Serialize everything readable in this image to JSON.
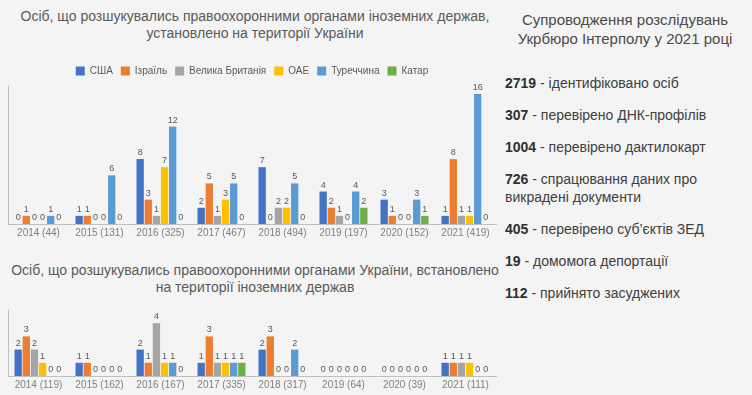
{
  "chart_data": [
    {
      "type": "bar",
      "title": "Осіб, що розшукувались правоохоронними органами іноземних держав, установлено на території України",
      "categories": [
        "2014 (44)",
        "2015 (131)",
        "2016 (325)",
        "2017 (467)",
        "2018 (494)",
        "2019 (197)",
        "2020 (152)",
        "2021 (419)"
      ],
      "series": [
        {
          "name": "США",
          "color": "#4472c4",
          "values": [
            0,
            1,
            8,
            2,
            7,
            4,
            3,
            1
          ]
        },
        {
          "name": "Ізраїль",
          "color": "#ed7d31",
          "values": [
            1,
            1,
            3,
            5,
            0,
            2,
            1,
            8
          ]
        },
        {
          "name": "Велика Британія",
          "color": "#a5a5a5",
          "values": [
            0,
            0,
            1,
            1,
            2,
            1,
            0,
            1
          ]
        },
        {
          "name": "ОАЕ",
          "color": "#ffc000",
          "values": [
            0,
            0,
            7,
            3,
            2,
            0,
            0,
            1
          ]
        },
        {
          "name": "Туреччина",
          "color": "#5b9bd5",
          "values": [
            1,
            6,
            12,
            5,
            5,
            4,
            3,
            16
          ]
        },
        {
          "name": "Катар",
          "color": "#70ad47",
          "values": [
            0,
            0,
            0,
            0,
            0,
            2,
            1,
            0
          ]
        }
      ],
      "ylim": [
        0,
        17
      ],
      "grid": false,
      "legend": "top",
      "data_labels": true,
      "tick_labels": "x"
    },
    {
      "type": "bar",
      "title": "Осіб, що розшукувались правоохоронними органами України, встановлено на території іноземних держав",
      "categories": [
        "2014 (119)",
        "2015 (162)",
        "2016 (167)",
        "2017 (335)",
        "2018 (317)",
        "2019 (64)",
        "2020 (39)",
        "2021 (111)"
      ],
      "series": [
        {
          "name": "США",
          "color": "#4472c4",
          "values": [
            2,
            1,
            2,
            1,
            2,
            0,
            0,
            1
          ]
        },
        {
          "name": "Ізраїль",
          "color": "#ed7d31",
          "values": [
            3,
            1,
            1,
            3,
            3,
            0,
            0,
            1
          ]
        },
        {
          "name": "Велика Британія",
          "color": "#a5a5a5",
          "values": [
            2,
            0,
            4,
            1,
            0,
            0,
            0,
            1
          ]
        },
        {
          "name": "ОАЕ",
          "color": "#ffc000",
          "values": [
            1,
            0,
            1,
            1,
            0,
            0,
            0,
            1
          ]
        },
        {
          "name": "Туреччина",
          "color": "#5b9bd5",
          "values": [
            0,
            0,
            1,
            1,
            2,
            0,
            0,
            0
          ]
        },
        {
          "name": "Катар",
          "color": "#70ad47",
          "values": [
            0,
            0,
            0,
            1,
            0,
            0,
            0,
            0
          ]
        }
      ],
      "ylim": [
        0,
        5
      ],
      "grid": false,
      "data_labels": true,
      "tick_labels": "x"
    }
  ],
  "panel": {
    "title": "Супроводження розслідувань Укрбюро Інтерполу у 2021 році",
    "items": [
      {
        "number": "2719",
        "text": "- ідентифіковано осіб"
      },
      {
        "number": "307",
        "text": "- перевірено ДНК-профілів"
      },
      {
        "number": "1004",
        "text": "- перевірено дактилокарт"
      },
      {
        "number": "726",
        "text": "- спрацювання даних про викрадені документи"
      },
      {
        "number": "405",
        "text": "- перевірено суб’єктів ЗЕД"
      },
      {
        "number": "19",
        "text": "- домомога депортації"
      },
      {
        "number": "112",
        "text": "- прийнято засуджених"
      }
    ]
  }
}
